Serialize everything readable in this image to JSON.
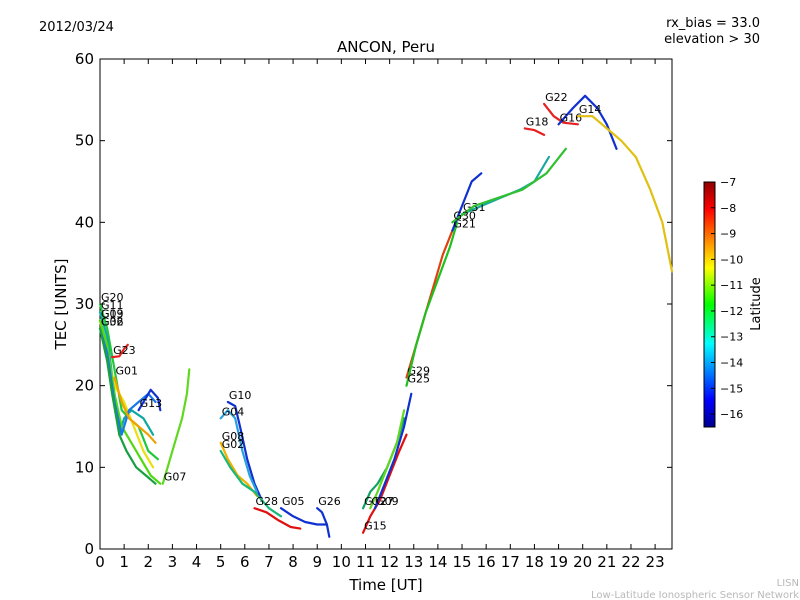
{
  "header": {
    "date": "2012/03/24",
    "rx_bias": "rx_bias = 33.0",
    "elevation": "elevation > 30"
  },
  "footer": {
    "line1": "LISN",
    "line2": "Low-Latitude Ionospheric Sensor Network"
  },
  "chart_data": {
    "type": "scatter",
    "title": "ANCON, Peru",
    "xlabel": "Time [UT]",
    "ylabel": "TEC [UNITS]",
    "xlim": [
      0,
      23.7
    ],
    "ylim": [
      0,
      60
    ],
    "xticks": [
      0,
      1,
      2,
      3,
      4,
      5,
      6,
      7,
      8,
      9,
      10,
      11,
      12,
      13,
      14,
      15,
      16,
      17,
      18,
      19,
      20,
      21,
      22,
      23
    ],
    "yticks": [
      0,
      10,
      20,
      30,
      40,
      50,
      60
    ],
    "grid": false,
    "colorbar": {
      "label": "Latitude",
      "min": -16.5,
      "max": -7,
      "ticks": [
        -7,
        -8,
        -9,
        -10,
        -11,
        -12,
        -13,
        -14,
        -15,
        -16
      ]
    },
    "series": [
      {
        "name": "G20",
        "color": "#22c83c",
        "points": [
          [
            0,
            30
          ],
          [
            0.3,
            27
          ],
          [
            0.6,
            22
          ],
          [
            0.9,
            17
          ],
          [
            1.2,
            16
          ],
          [
            1.6,
            15
          ],
          [
            2,
            12
          ],
          [
            2.4,
            11
          ]
        ]
      },
      {
        "name": "G11",
        "color": "#10a8a0",
        "points": [
          [
            0,
            29
          ],
          [
            0.3,
            26
          ],
          [
            0.6,
            19
          ],
          [
            0.8,
            14
          ],
          [
            1.0,
            16
          ],
          [
            1.3,
            17
          ],
          [
            1.8,
            16
          ],
          [
            2.2,
            14
          ]
        ]
      },
      {
        "name": "G19",
        "color": "#e8e010",
        "points": [
          [
            0,
            28
          ],
          [
            0.3,
            24
          ],
          [
            0.6,
            20
          ],
          [
            1.0,
            18
          ],
          [
            1.4,
            15
          ],
          [
            1.8,
            12
          ],
          [
            2.2,
            10
          ]
        ]
      },
      {
        "name": "G03",
        "color": "#50d810",
        "points": [
          [
            0,
            28
          ],
          [
            0.3,
            25
          ],
          [
            0.6,
            19
          ],
          [
            0.9,
            15
          ],
          [
            1.3,
            13
          ],
          [
            1.7,
            11
          ],
          [
            2.1,
            9
          ],
          [
            2.5,
            8
          ]
        ]
      },
      {
        "name": "G06",
        "color": "#1878e8",
        "points": [
          [
            0,
            27
          ],
          [
            0.3,
            24
          ],
          [
            0.6,
            18
          ],
          [
            0.9,
            14
          ],
          [
            1.2,
            17
          ],
          [
            1.6,
            18
          ],
          [
            2.0,
            19
          ],
          [
            2.3,
            18
          ]
        ]
      },
      {
        "name": "G32",
        "color": "#18a040",
        "points": [
          [
            0,
            27
          ],
          [
            0.3,
            23
          ],
          [
            0.5,
            19
          ],
          [
            0.8,
            14
          ],
          [
            1.1,
            12
          ],
          [
            1.5,
            10
          ],
          [
            1.9,
            9
          ],
          [
            2.3,
            8
          ]
        ]
      },
      {
        "name": "G23",
        "color": "#e82020",
        "points": [
          [
            0.5,
            23.5
          ],
          [
            0.8,
            23.6
          ],
          [
            1.0,
            24.5
          ],
          [
            1.15,
            25
          ]
        ]
      },
      {
        "name": "G01",
        "color": "#f0a000",
        "points": [
          [
            0.6,
            21
          ],
          [
            0.9,
            18
          ],
          [
            1.2,
            16
          ],
          [
            1.6,
            15
          ],
          [
            2.0,
            14
          ],
          [
            2.3,
            13
          ]
        ]
      },
      {
        "name": "G13",
        "color": "#1030d0",
        "points": [
          [
            1.6,
            17
          ],
          [
            1.9,
            18.5
          ],
          [
            2.1,
            19.5
          ],
          [
            2.4,
            18.5
          ],
          [
            2.5,
            17
          ]
        ]
      },
      {
        "name": "G07",
        "color": "#60d820",
        "points": [
          [
            2.6,
            8
          ],
          [
            2.9,
            11
          ],
          [
            3.1,
            13
          ],
          [
            3.4,
            16
          ],
          [
            3.6,
            19
          ],
          [
            3.7,
            22
          ]
        ]
      },
      {
        "name": "G10",
        "color": "#1030d0",
        "points": [
          [
            5.3,
            18
          ],
          [
            5.6,
            17.5
          ],
          [
            5.8,
            15
          ],
          [
            6.1,
            11
          ],
          [
            6.4,
            8
          ],
          [
            6.7,
            6
          ]
        ]
      },
      {
        "name": "G04",
        "color": "#28a0e0",
        "points": [
          [
            5.0,
            16
          ],
          [
            5.3,
            17
          ],
          [
            5.6,
            16
          ],
          [
            5.9,
            12
          ],
          [
            6.2,
            9
          ],
          [
            6.5,
            7
          ]
        ]
      },
      {
        "name": "G08",
        "color": "#f0b000",
        "points": [
          [
            5.0,
            13
          ],
          [
            5.3,
            11
          ],
          [
            5.7,
            9
          ],
          [
            6.1,
            8
          ],
          [
            6.5,
            6.5
          ]
        ]
      },
      {
        "name": "G02",
        "color": "#18b878",
        "points": [
          [
            5.0,
            12
          ],
          [
            5.4,
            10
          ],
          [
            5.9,
            8
          ],
          [
            6.4,
            7
          ],
          [
            7.0,
            5
          ],
          [
            7.5,
            4
          ]
        ]
      },
      {
        "name": "G28",
        "color": "#e01010",
        "points": [
          [
            6.4,
            5
          ],
          [
            6.9,
            4.5
          ],
          [
            7.4,
            3.5
          ],
          [
            7.9,
            2.7
          ],
          [
            8.3,
            2.5
          ]
        ]
      },
      {
        "name": "G05",
        "color": "#1030d0",
        "points": [
          [
            7.5,
            5
          ],
          [
            8.0,
            4
          ],
          [
            8.5,
            3.3
          ],
          [
            9.0,
            3
          ],
          [
            9.4,
            3
          ]
        ]
      },
      {
        "name": "G26",
        "color": "#1030d0",
        "points": [
          [
            9.0,
            5
          ],
          [
            9.2,
            4.5
          ],
          [
            9.4,
            3
          ],
          [
            9.5,
            1.5
          ]
        ]
      },
      {
        "name": "G12",
        "color": "#10a060",
        "points": [
          [
            10.9,
            5
          ],
          [
            11.2,
            7
          ],
          [
            11.5,
            8
          ],
          [
            11.9,
            10
          ],
          [
            12.3,
            13
          ],
          [
            12.6,
            16
          ]
        ]
      },
      {
        "name": "G27",
        "color": "#60d820",
        "points": [
          [
            11.2,
            5
          ],
          [
            11.5,
            7
          ],
          [
            11.9,
            10
          ],
          [
            12.3,
            13
          ],
          [
            12.6,
            17
          ]
        ]
      },
      {
        "name": "G15",
        "color": "#e01010",
        "points": [
          [
            10.9,
            2
          ],
          [
            11.2,
            4
          ],
          [
            11.6,
            6
          ],
          [
            12.0,
            9
          ],
          [
            12.4,
            12
          ],
          [
            12.7,
            14
          ]
        ]
      },
      {
        "name": "G09",
        "color": "#1030d0",
        "points": [
          [
            11.4,
            5
          ],
          [
            11.8,
            8
          ],
          [
            12.2,
            11
          ],
          [
            12.6,
            15
          ],
          [
            12.9,
            19
          ]
        ]
      },
      {
        "name": "G29",
        "color": "#e04010",
        "points": [
          [
            12.7,
            21
          ],
          [
            13.0,
            24
          ],
          [
            13.4,
            28
          ],
          [
            13.8,
            32
          ],
          [
            14.2,
            36
          ],
          [
            14.6,
            39
          ]
        ]
      },
      {
        "name": "G25",
        "color": "#20c020",
        "points": [
          [
            12.7,
            20
          ],
          [
            13.1,
            25
          ],
          [
            13.5,
            29
          ],
          [
            14.0,
            33
          ],
          [
            14.5,
            37
          ],
          [
            14.8,
            40
          ]
        ]
      },
      {
        "name": "G21",
        "color": "#1030d0",
        "points": [
          [
            14.6,
            39
          ],
          [
            15.0,
            42
          ],
          [
            15.4,
            45
          ],
          [
            15.8,
            46
          ]
        ]
      },
      {
        "name": "G31",
        "color": "#18a8a0",
        "points": [
          [
            15.0,
            41
          ],
          [
            15.8,
            42
          ],
          [
            16.6,
            43
          ],
          [
            17.4,
            44
          ],
          [
            18.0,
            45
          ],
          [
            18.6,
            48
          ]
        ]
      },
      {
        "name": "G30",
        "color": "#30c030",
        "points": [
          [
            14.6,
            40
          ],
          [
            15.5,
            42
          ],
          [
            16.5,
            43
          ],
          [
            17.5,
            44
          ],
          [
            18.5,
            46
          ],
          [
            19.3,
            49
          ]
        ]
      },
      {
        "name": "G18",
        "color": "#e82020",
        "points": [
          [
            17.6,
            51.5
          ],
          [
            18.0,
            51.3
          ],
          [
            18.4,
            50.7
          ]
        ]
      },
      {
        "name": "G22",
        "color": "#e82020",
        "points": [
          [
            18.4,
            54.5
          ],
          [
            18.8,
            53
          ],
          [
            19.2,
            52.2
          ],
          [
            19.8,
            52
          ]
        ]
      },
      {
        "name": "G16",
        "color": "#1030d0",
        "points": [
          [
            19.0,
            52
          ],
          [
            19.6,
            54
          ],
          [
            20.1,
            55.5
          ],
          [
            20.6,
            54
          ],
          [
            21.0,
            52
          ],
          [
            21.4,
            49
          ]
        ]
      },
      {
        "name": "G14",
        "color": "#e0c010",
        "points": [
          [
            19.8,
            53
          ],
          [
            20.4,
            53
          ],
          [
            21.0,
            51.5
          ],
          [
            21.6,
            50
          ],
          [
            22.2,
            48
          ],
          [
            22.8,
            44
          ],
          [
            23.3,
            40
          ],
          [
            23.7,
            34
          ]
        ]
      }
    ]
  }
}
